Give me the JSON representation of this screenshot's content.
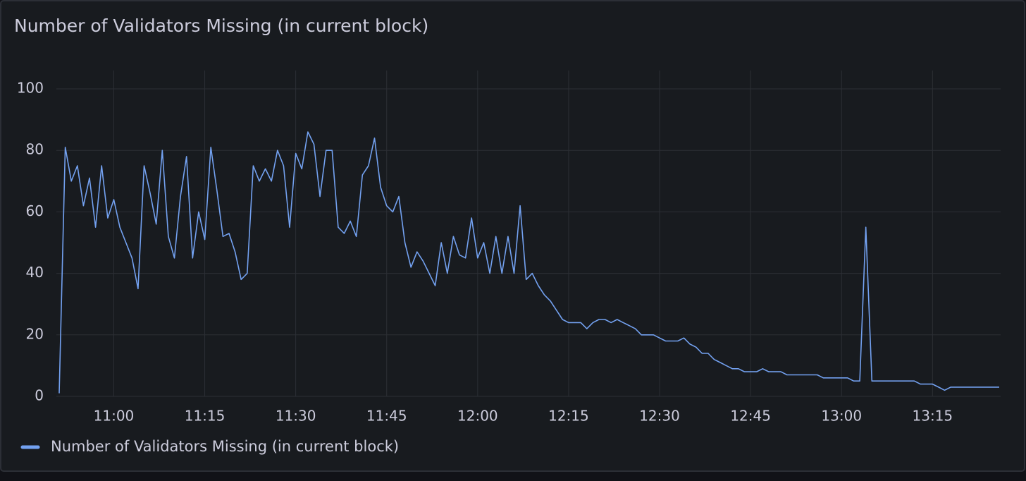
{
  "chart_data": {
    "type": "line",
    "title": "Number of Validators Missing (in current block)",
    "x": [
      "10:51",
      "10:52",
      "10:53",
      "10:54",
      "10:55",
      "10:56",
      "10:57",
      "10:58",
      "10:59",
      "11:00",
      "11:01",
      "11:02",
      "11:03",
      "11:04",
      "11:05",
      "11:06",
      "11:07",
      "11:08",
      "11:09",
      "11:10",
      "11:11",
      "11:12",
      "11:13",
      "11:14",
      "11:15",
      "11:16",
      "11:17",
      "11:18",
      "11:19",
      "11:20",
      "11:21",
      "11:22",
      "11:23",
      "11:24",
      "11:25",
      "11:26",
      "11:27",
      "11:28",
      "11:29",
      "11:30",
      "11:31",
      "11:32",
      "11:33",
      "11:34",
      "11:35",
      "11:36",
      "11:37",
      "11:38",
      "11:39",
      "11:40",
      "11:41",
      "11:42",
      "11:43",
      "11:44",
      "11:45",
      "11:46",
      "11:47",
      "11:48",
      "11:49",
      "11:50",
      "11:51",
      "11:52",
      "11:53",
      "11:54",
      "11:55",
      "11:56",
      "11:57",
      "11:58",
      "11:59",
      "12:00",
      "12:01",
      "12:02",
      "12:03",
      "12:04",
      "12:05",
      "12:06",
      "12:07",
      "12:08",
      "12:09",
      "12:10",
      "12:11",
      "12:12",
      "12:13",
      "12:14",
      "12:15",
      "12:16",
      "12:17",
      "12:18",
      "12:19",
      "12:20",
      "12:21",
      "12:22",
      "12:23",
      "12:24",
      "12:25",
      "12:26",
      "12:27",
      "12:28",
      "12:29",
      "12:30",
      "12:31",
      "12:32",
      "12:33",
      "12:34",
      "12:35",
      "12:36",
      "12:37",
      "12:38",
      "12:39",
      "12:40",
      "12:41",
      "12:42",
      "12:43",
      "12:44",
      "12:45",
      "12:46",
      "12:47",
      "12:48",
      "12:49",
      "12:50",
      "12:51",
      "12:52",
      "12:53",
      "12:54",
      "12:55",
      "12:56",
      "12:57",
      "12:58",
      "12:59",
      "13:00",
      "13:01",
      "13:02",
      "13:03",
      "13:04",
      "13:05",
      "13:06",
      "13:07",
      "13:08",
      "13:09",
      "13:10",
      "13:11",
      "13:12",
      "13:13",
      "13:14",
      "13:15",
      "13:16",
      "13:17",
      "13:18",
      "13:19",
      "13:20",
      "13:21",
      "13:22",
      "13:23",
      "13:24",
      "13:25",
      "13:26"
    ],
    "series": [
      {
        "name": "Number of Validators Missing (in current block)",
        "color": "#73a1f0",
        "values": [
          1,
          81,
          70,
          75,
          62,
          71,
          55,
          75,
          58,
          64,
          55,
          50,
          45,
          35,
          75,
          66,
          56,
          80,
          52,
          45,
          65,
          78,
          45,
          60,
          51,
          81,
          67,
          52,
          53,
          47,
          38,
          40,
          75,
          70,
          74,
          70,
          80,
          75,
          55,
          79,
          74,
          86,
          82,
          65,
          80,
          80,
          55,
          53,
          57,
          52,
          72,
          75,
          84,
          68,
          62,
          60,
          65,
          50,
          42,
          47,
          44,
          40,
          36,
          50,
          40,
          52,
          46,
          45,
          58,
          45,
          50,
          40,
          52,
          40,
          52,
          40,
          62,
          38,
          40,
          36,
          33,
          31,
          28,
          25,
          24,
          24,
          24,
          22,
          24,
          25,
          25,
          24,
          25,
          24,
          23,
          22,
          20,
          20,
          20,
          19,
          18,
          18,
          18,
          19,
          17,
          16,
          14,
          14,
          12,
          11,
          10,
          9,
          9,
          8,
          8,
          8,
          9,
          8,
          8,
          8,
          7,
          7,
          7,
          7,
          7,
          7,
          6,
          6,
          6,
          6,
          6,
          5,
          5,
          55,
          5,
          5,
          5,
          5,
          5,
          5,
          5,
          5,
          4,
          4,
          4,
          3,
          2,
          3,
          3,
          3,
          3,
          3,
          3,
          3,
          3,
          3
        ]
      }
    ],
    "xlim": [
      "10:51",
      "13:26"
    ],
    "xticks": [
      "11:00",
      "11:15",
      "11:30",
      "11:45",
      "12:00",
      "12:15",
      "12:30",
      "12:45",
      "13:00",
      "13:15"
    ],
    "ylim": [
      0,
      100
    ],
    "yticks": [
      0,
      20,
      40,
      60,
      80,
      100
    ],
    "grid": true,
    "legend": "bottom-left"
  }
}
